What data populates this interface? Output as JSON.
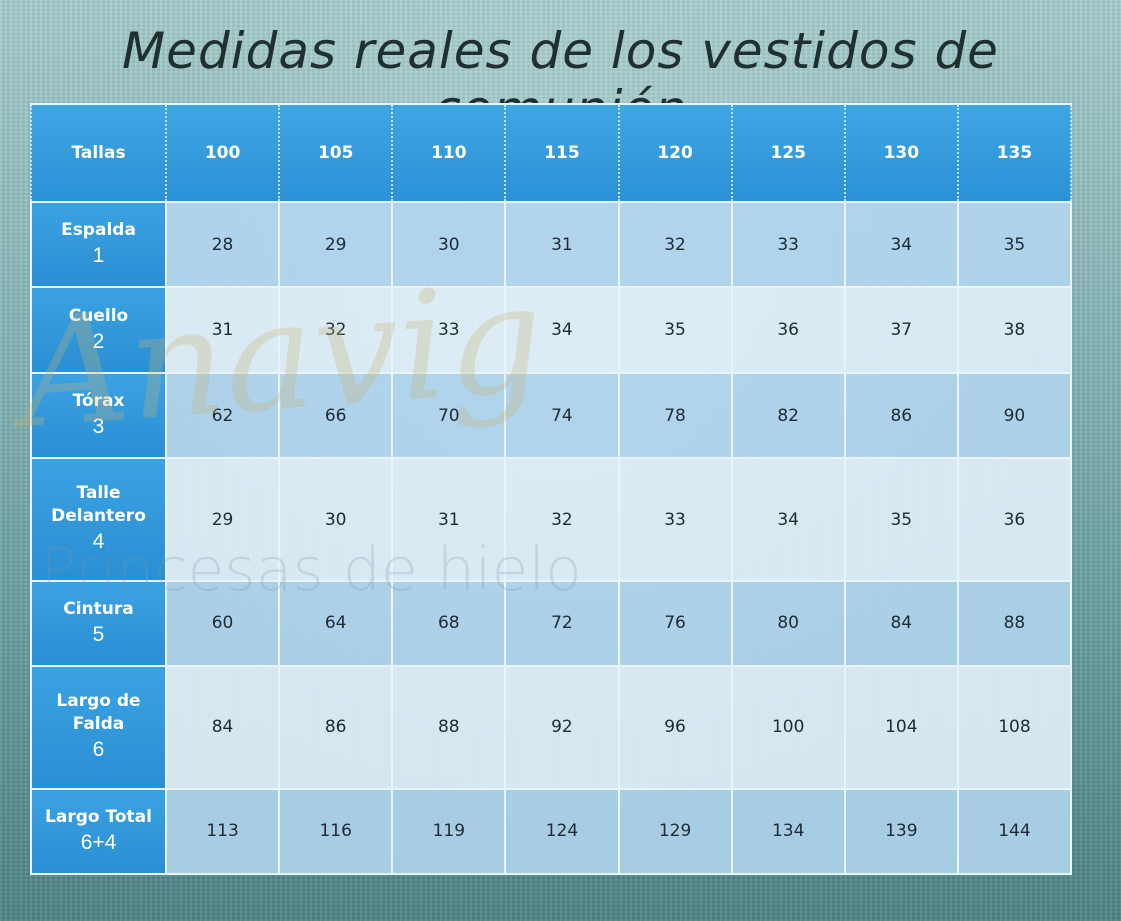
{
  "title": "Medidas reales de los vestidos de comunión",
  "watermark": {
    "brand": "Anavig",
    "tagline": "Princesas de hielo"
  },
  "table": {
    "corner_label": "Tallas",
    "sizes": [
      "100",
      "105",
      "110",
      "115",
      "120",
      "125",
      "130",
      "135"
    ],
    "rows": [
      {
        "label": "Espalda",
        "number": "1",
        "values": [
          "28",
          "29",
          "30",
          "31",
          "32",
          "33",
          "34",
          "35"
        ]
      },
      {
        "label": "Cuello",
        "number": "2",
        "values": [
          "31",
          "32",
          "33",
          "34",
          "35",
          "36",
          "37",
          "38"
        ]
      },
      {
        "label": "Tórax",
        "number": "3",
        "values": [
          "62",
          "66",
          "70",
          "74",
          "78",
          "82",
          "86",
          "90"
        ]
      },
      {
        "label": "Talle Delantero",
        "number": "4",
        "values": [
          "29",
          "30",
          "31",
          "32",
          "33",
          "34",
          "35",
          "36"
        ]
      },
      {
        "label": "Cintura",
        "number": "5",
        "values": [
          "60",
          "64",
          "68",
          "72",
          "76",
          "80",
          "84",
          "88"
        ]
      },
      {
        "label": "Largo de Falda",
        "number": "6",
        "values": [
          "84",
          "86",
          "88",
          "92",
          "96",
          "100",
          "104",
          "108"
        ]
      },
      {
        "label": "Largo Total",
        "number": "6+4",
        "values": [
          "113",
          "116",
          "119",
          "124",
          "129",
          "134",
          "139",
          "144"
        ]
      }
    ]
  }
}
